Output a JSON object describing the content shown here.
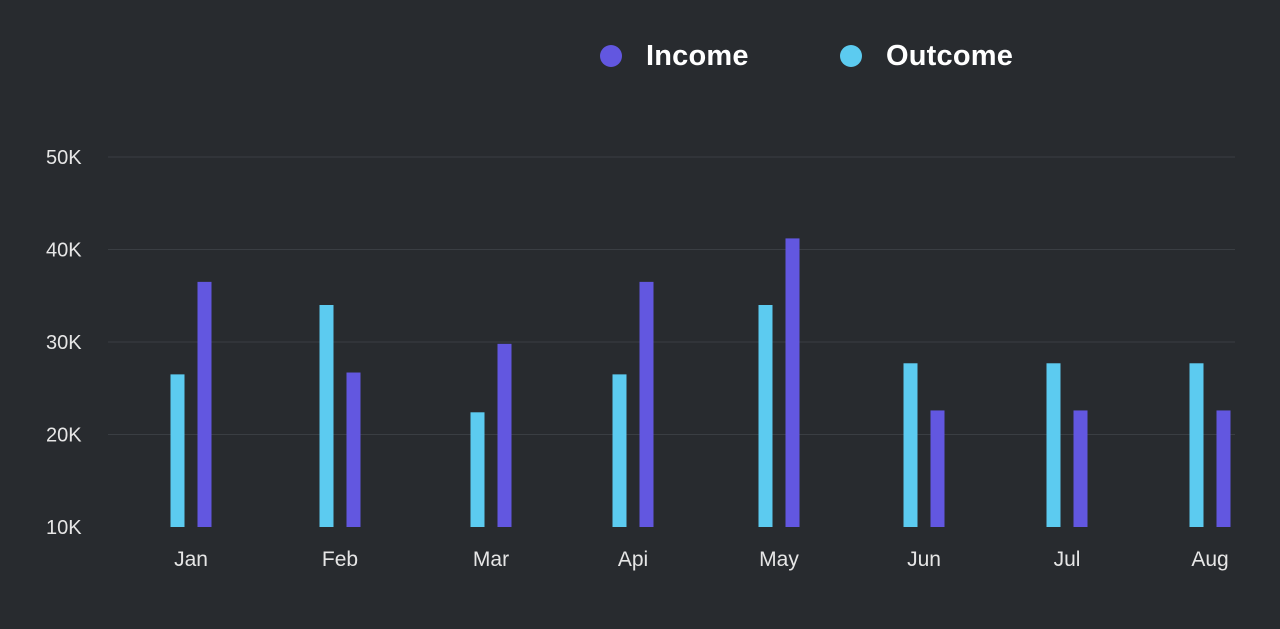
{
  "chart_data": {
    "type": "bar",
    "title": "",
    "xlabel": "",
    "ylabel": "",
    "categories": [
      "Jan",
      "Feb",
      "Mar",
      "Api",
      "May",
      "Jun",
      "Jul",
      "Aug"
    ],
    "series": [
      {
        "name": "Outcome",
        "color": "#5ccbf0",
        "values": [
          26500,
          34000,
          22400,
          26500,
          34000,
          27700,
          27700,
          27700
        ]
      },
      {
        "name": "Income",
        "color": "#6257e0",
        "values": [
          36500,
          26700,
          29800,
          36500,
          41200,
          22600,
          22600,
          22600
        ]
      }
    ],
    "ylim": [
      10000,
      50000
    ],
    "yticks": [
      {
        "value": 10000,
        "label": "10K"
      },
      {
        "value": 20000,
        "label": "20K"
      },
      {
        "value": 30000,
        "label": "30K"
      },
      {
        "value": 40000,
        "label": "40K"
      },
      {
        "value": 50000,
        "label": "50K"
      }
    ],
    "grid": true,
    "legend": {
      "placement": "top-center",
      "items": [
        {
          "name": "Income",
          "color": "#6257e0"
        },
        {
          "name": "Outcome",
          "color": "#5ccbf0"
        }
      ]
    }
  }
}
